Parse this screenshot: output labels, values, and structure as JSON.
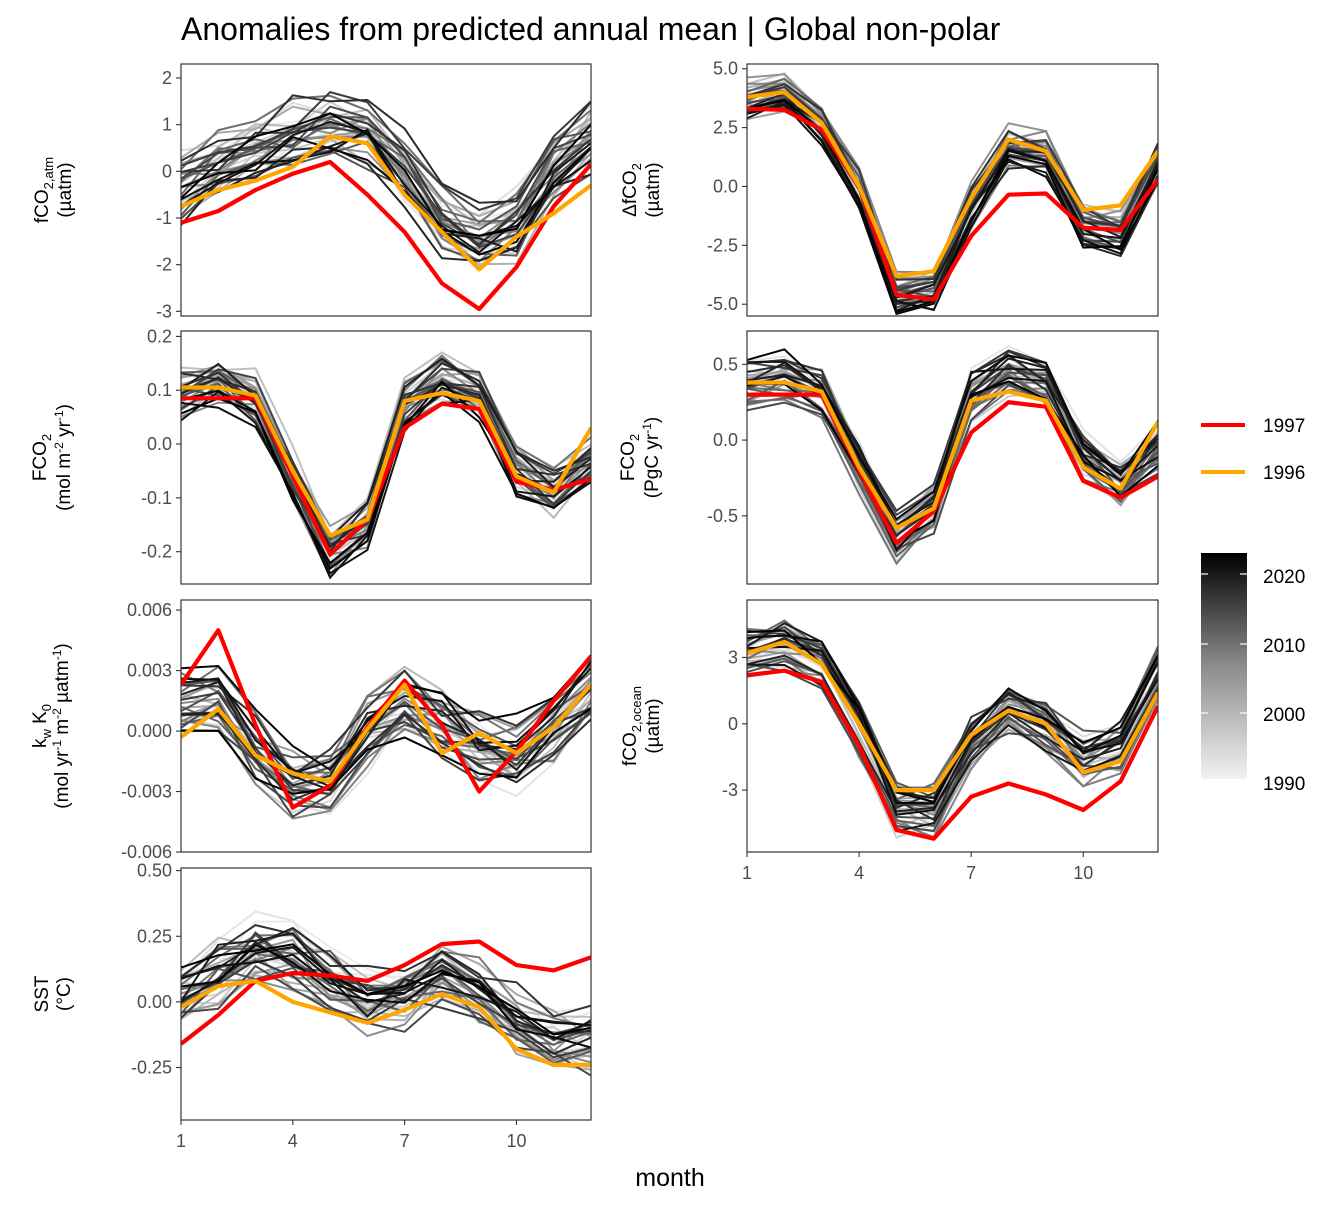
{
  "title": "Anomalies from predicted annual mean | Global non-polar",
  "x_axis_label": "month",
  "x_ticks": [
    1,
    4,
    7,
    10
  ],
  "colors": {
    "year_1997": "#ff0000",
    "year_1996": "#ffa500",
    "gradient_low": "#f2f2f2",
    "gradient_high": "#000000"
  },
  "legend": {
    "highlight": [
      {
        "label": "1997",
        "color": "#ff0000"
      },
      {
        "label": "1996",
        "color": "#ffa500"
      }
    ],
    "gradient_ticks": [
      "2020",
      "2010",
      "2000",
      "1990"
    ]
  },
  "chart_data": [
    {
      "id": "fco2_atm",
      "type": "line",
      "ylabel": [
        "fCO",
        "2,atm",
        "(µatm)"
      ],
      "ylim": [
        -3.1,
        2.3
      ],
      "yticks": [
        2,
        1,
        0,
        -1,
        -2,
        -3
      ],
      "ytick_labels": [
        "2",
        "1",
        "0",
        "-1",
        "-2",
        "-3"
      ],
      "x": [
        1,
        2,
        3,
        4,
        5,
        6,
        7,
        8,
        9,
        10,
        11,
        12
      ],
      "series": [
        {
          "name": "1997",
          "values": [
            -1.1,
            -0.85,
            -0.4,
            -0.05,
            0.2,
            -0.5,
            -1.3,
            -2.4,
            -2.95,
            -2.05,
            -0.75,
            0.15
          ]
        },
        {
          "name": "1996",
          "values": [
            -0.75,
            -0.4,
            -0.2,
            0.1,
            0.75,
            0.6,
            -0.5,
            -1.3,
            -2.1,
            -1.4,
            -0.9,
            -0.3
          ]
        }
      ],
      "background_mean": [
        -0.3,
        0.1,
        0.45,
        0.75,
        0.95,
        0.85,
        0.0,
        -1.05,
        -1.45,
        -1.15,
        0.1,
        0.75
      ],
      "background_spread": 0.75
    },
    {
      "id": "delta_fco2",
      "type": "line",
      "ylabel": [
        "ΔfCO",
        "2",
        "(µatm)"
      ],
      "ylim": [
        -5.5,
        5.2
      ],
      "yticks": [
        5,
        2.5,
        0,
        -2.5,
        -5
      ],
      "ytick_labels": [
        "5.0",
        "2.5",
        "0.0",
        "-2.5",
        "-5.0"
      ],
      "x": [
        1,
        2,
        3,
        4,
        5,
        6,
        7,
        8,
        9,
        10,
        11,
        12
      ],
      "series": [
        {
          "name": "1997",
          "values": [
            3.3,
            3.25,
            2.4,
            0.0,
            -4.6,
            -4.8,
            -2.1,
            -0.35,
            -0.3,
            -1.75,
            -1.85,
            0.3
          ]
        },
        {
          "name": "1996",
          "values": [
            3.8,
            4.0,
            2.7,
            0.0,
            -3.8,
            -3.6,
            -0.5,
            2.0,
            1.5,
            -1.0,
            -0.8,
            1.5
          ]
        }
      ],
      "background_mean": [
        3.6,
        3.8,
        2.6,
        -0.2,
        -4.6,
        -4.5,
        -0.9,
        1.6,
        1.3,
        -1.7,
        -2.1,
        1.0
      ],
      "background_spread": 0.9
    },
    {
      "id": "fco2_flux_area",
      "type": "line",
      "ylabel": [
        "FCO",
        "2",
        "(mol m",
        "-2",
        " yr",
        "-1",
        ")"
      ],
      "ylim": [
        -0.26,
        0.21
      ],
      "yticks": [
        0.2,
        0.1,
        0.0,
        -0.1,
        -0.2
      ],
      "ytick_labels": [
        "0.2",
        "0.1",
        "0.0",
        "-0.1",
        "-0.2"
      ],
      "x": [
        1,
        2,
        3,
        4,
        5,
        6,
        7,
        8,
        9,
        10,
        11,
        12
      ],
      "series": [
        {
          "name": "1997",
          "values": [
            0.085,
            0.085,
            0.085,
            -0.06,
            -0.205,
            -0.14,
            0.03,
            0.075,
            0.065,
            -0.07,
            -0.085,
            -0.065
          ]
        },
        {
          "name": "1996",
          "values": [
            0.105,
            0.105,
            0.09,
            -0.05,
            -0.17,
            -0.14,
            0.08,
            0.095,
            0.08,
            -0.06,
            -0.09,
            0.03
          ]
        }
      ],
      "background_mean": [
        0.1,
        0.12,
        0.09,
        -0.06,
        -0.19,
        -0.14,
        0.08,
        0.13,
        0.1,
        -0.04,
        -0.08,
        -0.02
      ],
      "background_spread": 0.05
    },
    {
      "id": "fco2_flux_total",
      "type": "line",
      "ylabel": [
        "FCO",
        "2",
        "(PgC yr",
        "-1",
        ")"
      ],
      "ylim": [
        -0.95,
        0.72
      ],
      "yticks": [
        0.5,
        0.0,
        -0.5
      ],
      "ytick_labels": [
        "0.5",
        "0.0",
        "-0.5"
      ],
      "x": [
        1,
        2,
        3,
        4,
        5,
        6,
        7,
        8,
        9,
        10,
        11,
        12
      ],
      "series": [
        {
          "name": "1997",
          "values": [
            0.3,
            0.3,
            0.3,
            -0.2,
            -0.68,
            -0.47,
            0.05,
            0.25,
            0.22,
            -0.27,
            -0.38,
            -0.24
          ]
        },
        {
          "name": "1996",
          "values": [
            0.38,
            0.38,
            0.32,
            -0.18,
            -0.58,
            -0.45,
            0.26,
            0.32,
            0.26,
            -0.18,
            -0.32,
            0.12
          ]
        }
      ],
      "background_mean": [
        0.35,
        0.4,
        0.3,
        -0.2,
        -0.65,
        -0.45,
        0.28,
        0.43,
        0.35,
        -0.12,
        -0.3,
        -0.05
      ],
      "background_spread": 0.17
    },
    {
      "id": "kw_k0",
      "type": "line",
      "ylabel": [
        "k",
        "w",
        " K",
        "0",
        "(mol yr",
        "-1",
        " m",
        "-2",
        " µatm",
        "-1",
        ")"
      ],
      "ylim": [
        -0.006,
        0.0065
      ],
      "yticks": [
        0.006,
        0.003,
        0.0,
        -0.003,
        -0.006
      ],
      "ytick_labels": [
        "0.006",
        "0.003",
        "0.000",
        "-0.003",
        "-0.006"
      ],
      "x": [
        1,
        2,
        3,
        4,
        5,
        6,
        7,
        8,
        9,
        10,
        11,
        12
      ],
      "series": [
        {
          "name": "1997",
          "values": [
            0.0023,
            0.005,
            0.0003,
            -0.0038,
            -0.0027,
            0.0002,
            0.0025,
            0.0003,
            -0.003,
            -0.001,
            0.0015,
            0.0037
          ]
        },
        {
          "name": "1996",
          "values": [
            -0.0003,
            0.0011,
            -0.0012,
            -0.0021,
            -0.0025,
            0.0001,
            0.0023,
            -0.0011,
            -0.0001,
            -0.0011,
            0.0002,
            0.0023
          ]
        }
      ],
      "background_mean": [
        0.0015,
        0.0015,
        -0.001,
        -0.0025,
        -0.0025,
        0.0,
        0.0015,
        0.0005,
        -0.0008,
        -0.0012,
        0.0002,
        0.0022
      ],
      "background_spread": 0.0018
    },
    {
      "id": "fco2_ocean",
      "type": "line",
      "ylabel": [
        "fCO",
        "2,ocean",
        "(µatm)"
      ],
      "ylim": [
        -5.8,
        5.6
      ],
      "yticks": [
        3,
        0,
        -3
      ],
      "ytick_labels": [
        "3",
        "0",
        "-3"
      ],
      "x": [
        1,
        2,
        3,
        4,
        5,
        6,
        7,
        8,
        9,
        10,
        11,
        12
      ],
      "series": [
        {
          "name": "1997",
          "values": [
            2.2,
            2.4,
            1.9,
            -1.0,
            -4.8,
            -5.2,
            -3.3,
            -2.7,
            -3.2,
            -3.9,
            -2.6,
            0.8
          ]
        },
        {
          "name": "1996",
          "values": [
            3.2,
            3.7,
            2.7,
            0.0,
            -3.0,
            -3.0,
            -0.5,
            0.6,
            0.0,
            -2.2,
            -1.7,
            1.4
          ]
        }
      ],
      "background_mean": [
        3.2,
        3.5,
        2.7,
        -0.2,
        -3.9,
        -4.0,
        -0.8,
        0.6,
        0.0,
        -1.6,
        -1.0,
        2.2
      ],
      "background_spread": 1.1
    },
    {
      "id": "sst",
      "type": "line",
      "ylabel": [
        "SST",
        "(°C)"
      ],
      "ylim": [
        -0.45,
        0.51
      ],
      "yticks": [
        0.5,
        0.25,
        0.0,
        -0.25
      ],
      "ytick_labels": [
        "0.50",
        "0.25",
        "0.00",
        "-0.25"
      ],
      "x": [
        1,
        2,
        3,
        4,
        5,
        6,
        7,
        8,
        9,
        10,
        11,
        12
      ],
      "series": [
        {
          "name": "1997",
          "values": [
            -0.16,
            -0.05,
            0.08,
            0.11,
            0.1,
            0.08,
            0.14,
            0.22,
            0.23,
            0.14,
            0.12,
            0.17
          ]
        },
        {
          "name": "1996",
          "values": [
            -0.02,
            0.06,
            0.08,
            0.0,
            -0.04,
            -0.08,
            -0.03,
            0.03,
            -0.02,
            -0.18,
            -0.24,
            -0.24
          ]
        }
      ],
      "background_mean": [
        0.02,
        0.12,
        0.2,
        0.17,
        0.07,
        0.0,
        0.04,
        0.1,
        0.04,
        -0.08,
        -0.15,
        -0.13
      ],
      "background_spread": 0.14
    }
  ]
}
